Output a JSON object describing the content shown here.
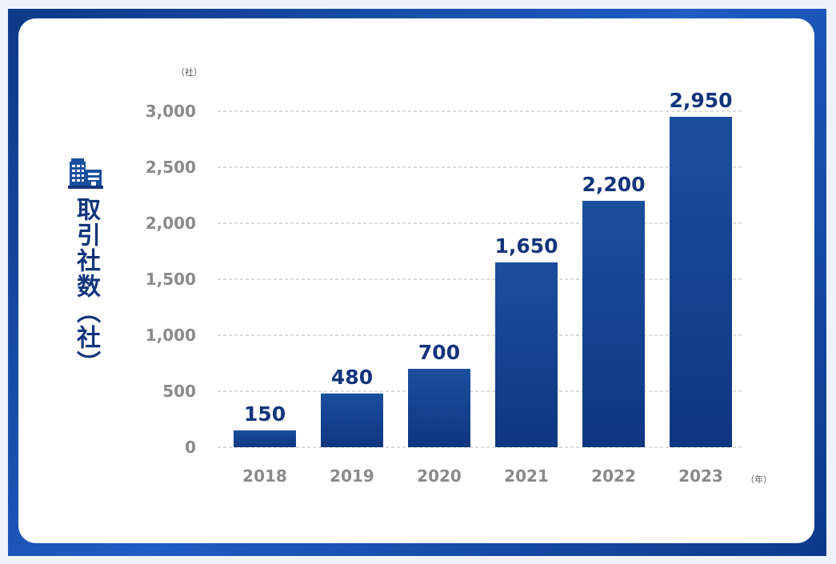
{
  "chart_data": {
    "type": "bar",
    "title": "",
    "ylabel": "取引社数（社）",
    "y_unit": "（社）",
    "x_unit": "（年）",
    "categories": [
      "2018",
      "2019",
      "2020",
      "2021",
      "2022",
      "2023"
    ],
    "values": [
      150,
      480,
      700,
      1650,
      2200,
      2950
    ],
    "value_labels": [
      "150",
      "480",
      "700",
      "1,650",
      "2,200",
      "2,950"
    ],
    "yticks": [
      "0",
      "500",
      "1,000",
      "1,500",
      "2,000",
      "2,500",
      "3,000"
    ],
    "ytick_values": [
      0,
      500,
      1000,
      1500,
      2000,
      2500,
      3000
    ],
    "ylim": [
      0,
      3000
    ],
    "grid": "dashed horizontal",
    "colors": {
      "bar_top": "#1a4f9e",
      "bar_bottom": "#0f3680",
      "label": "#12357a",
      "tick": "#8a8a8a",
      "frame": "#1d57b8"
    }
  },
  "icon": "building-icon"
}
